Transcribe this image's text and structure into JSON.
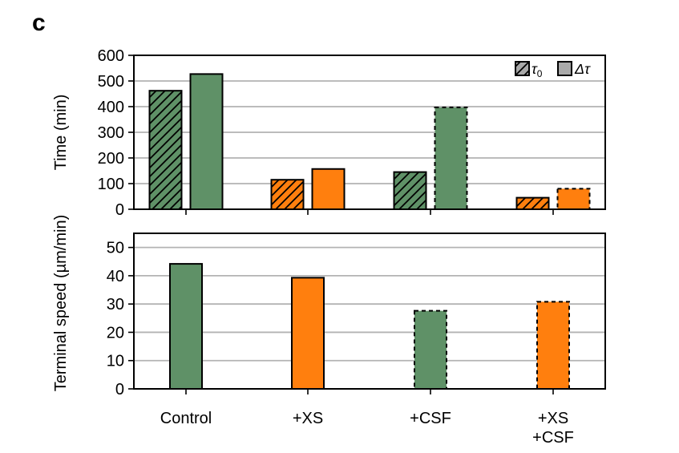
{
  "panel_label": "c",
  "colors": {
    "green": "#5f9167",
    "orange": "#ff7f0e",
    "legend_gray": "#a9a9a9",
    "grid": "#b3b3b3"
  },
  "chart_data": [
    {
      "type": "bar",
      "ylabel": "Time (min)",
      "ylim": [
        0,
        600
      ],
      "yticks": [
        0,
        100,
        200,
        300,
        400,
        500,
        600
      ],
      "grid": "horizontal",
      "legend": {
        "placement": "top-right",
        "entries": [
          {
            "label": "τ",
            "subscript": "0",
            "style": "hatched"
          },
          {
            "label": "Δτ",
            "style": "solid"
          }
        ]
      },
      "categories": [
        "Control",
        "+XS",
        "+CSF",
        "+XS +CSF"
      ],
      "series": [
        {
          "name": "τ0",
          "values": [
            462,
            115,
            145,
            45
          ],
          "colors": [
            "green",
            "orange",
            "green",
            "orange"
          ],
          "hatched": true,
          "dashed_edge": [
            false,
            false,
            false,
            false
          ]
        },
        {
          "name": "Δτ",
          "values": [
            527,
            157,
            397,
            80
          ],
          "colors": [
            "green",
            "orange",
            "green",
            "orange"
          ],
          "hatched": false,
          "dashed_edge": [
            false,
            false,
            true,
            true
          ]
        }
      ]
    },
    {
      "type": "bar",
      "ylabel": "Terminal speed (µm/min)",
      "ylim": [
        0,
        55
      ],
      "yticks": [
        0,
        10,
        20,
        30,
        40,
        50
      ],
      "grid": "horizontal",
      "categories": [
        "Control",
        "+XS",
        "+CSF",
        "+XS\n+CSF"
      ],
      "values": [
        44.2,
        39.3,
        27.6,
        30.8
      ],
      "colors": [
        "green",
        "orange",
        "green",
        "orange"
      ],
      "dashed_edge": [
        false,
        false,
        true,
        true
      ]
    }
  ]
}
